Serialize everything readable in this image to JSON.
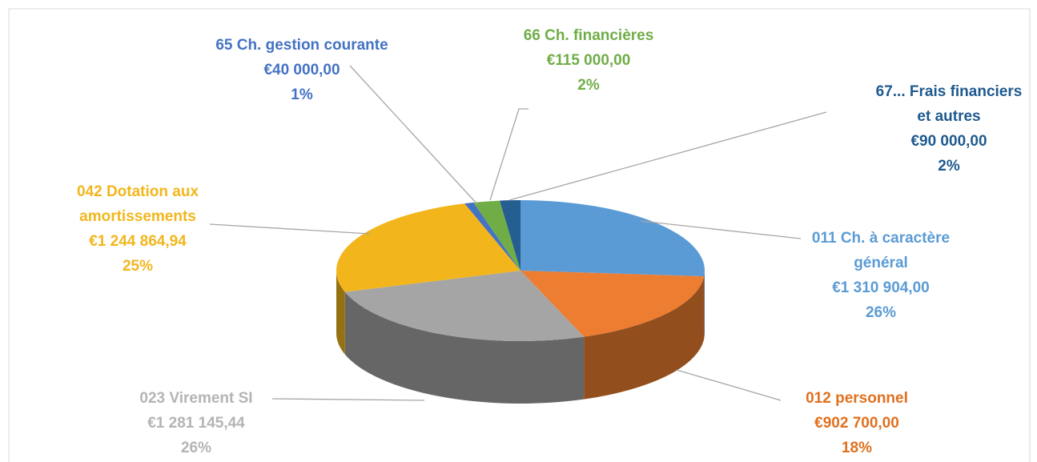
{
  "chart_data": {
    "type": "pie3d",
    "categories": [
      "011 Ch. à caractère\ngénéral",
      "012 personnel",
      "023 Virement SI",
      "042 Dotation aux\namortissements",
      "65 Ch. gestion courante",
      "66 Ch. financières",
      "67... Frais financiers\net autres"
    ],
    "values": [
      1310904.0,
      902700.0,
      1281145.44,
      1244864.94,
      40000.0,
      115000.0,
      90000.0
    ],
    "value_labels": [
      "€1 310 904,00",
      "€902 700,00",
      "€1 281 145,44",
      "€1 244 864,94",
      "€40 000,00",
      "€115 000,00",
      "€90 000,00"
    ],
    "percent_labels": [
      "26%",
      "18%",
      "26%",
      "25%",
      "1%",
      "2%",
      "2%"
    ],
    "colors": [
      "#5b9bd5",
      "#ed7d31",
      "#a5a5a5",
      "#f2b61c",
      "#4472c4",
      "#70ad47",
      "#255e91"
    ],
    "label_colors": [
      "#5b9bd5",
      "#e0701f",
      "#b4b4b4",
      "#f2b61c",
      "#4472c4",
      "#70ad47",
      "#1f5a8f"
    ]
  }
}
